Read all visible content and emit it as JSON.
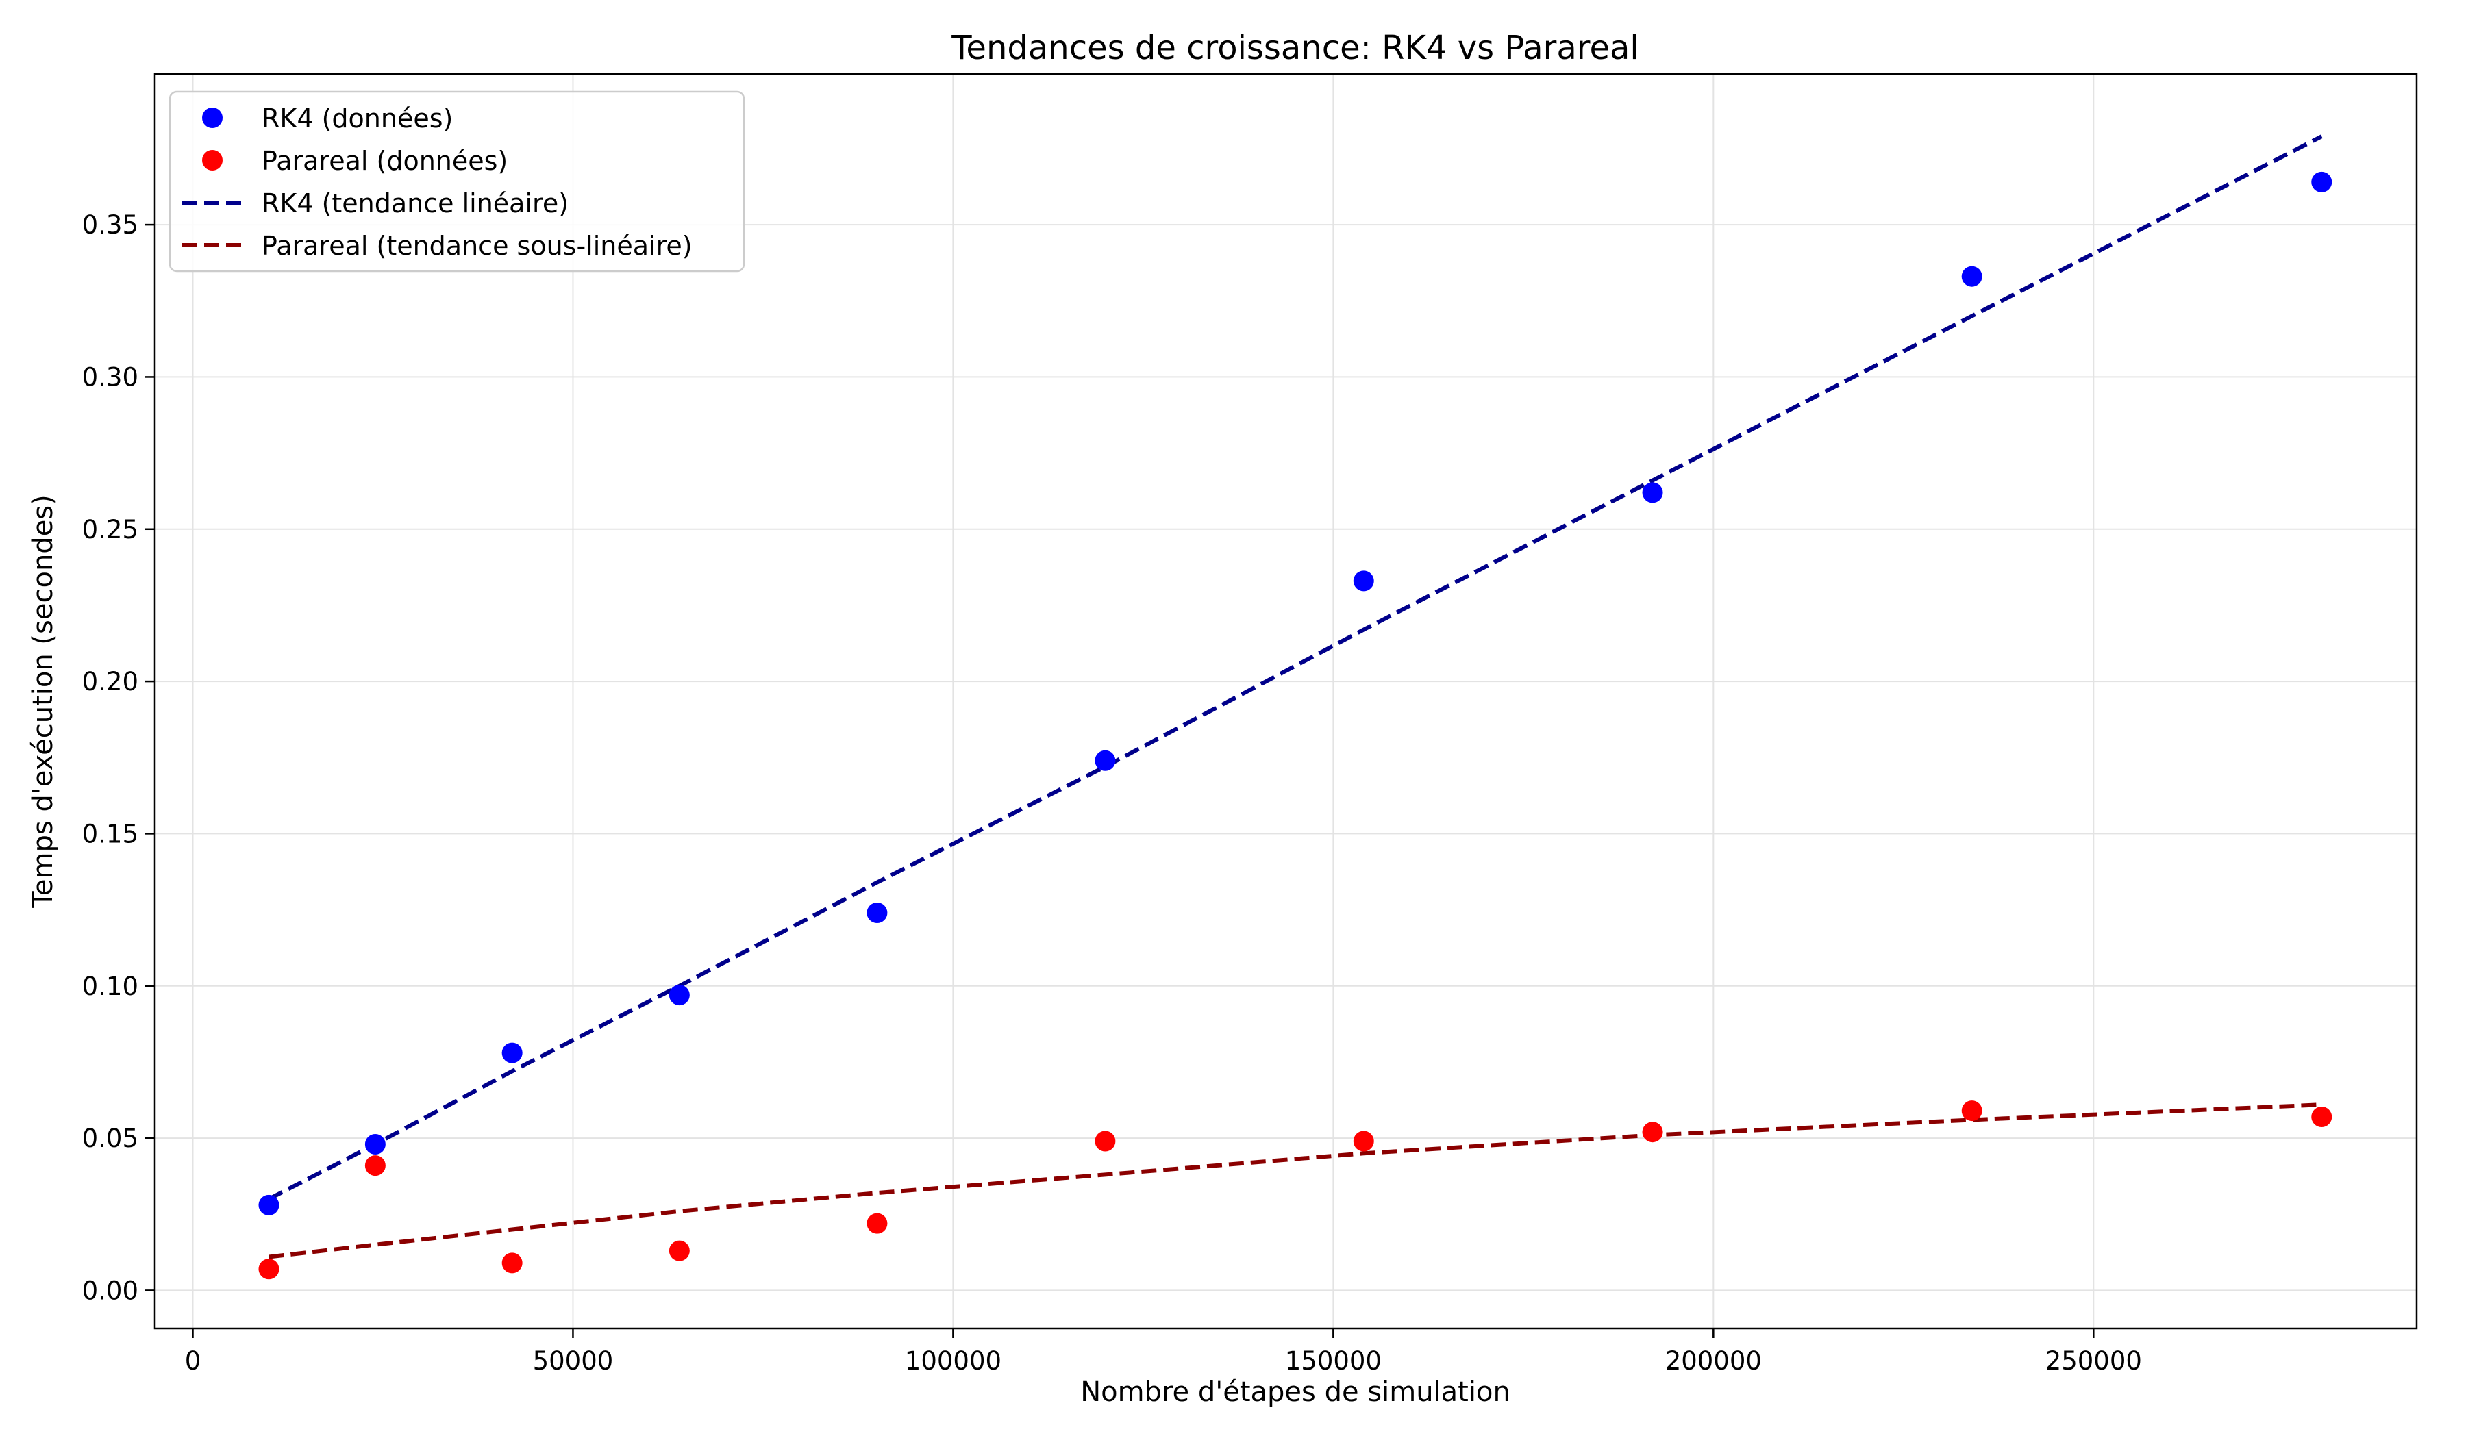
{
  "chart_data": {
    "type": "scatter",
    "title": "Tendances de croissance: RK4 vs Parareal",
    "xlabel": "Nombre d'étapes de simulation",
    "ylabel": "Temps d'exécution (secondes)",
    "xlim": [
      -5000,
      292500
    ],
    "ylim": [
      -0.0125,
      0.3995
    ],
    "xticks": [
      0,
      50000,
      100000,
      150000,
      200000,
      250000
    ],
    "xtick_labels": [
      "0",
      "50000",
      "100000",
      "150000",
      "200000",
      "250000"
    ],
    "yticks": [
      0.0,
      0.05,
      0.1,
      0.15,
      0.2,
      0.25,
      0.3,
      0.35
    ],
    "ytick_labels": [
      "0.00",
      "0.05",
      "0.10",
      "0.15",
      "0.20",
      "0.25",
      "0.30",
      "0.35"
    ],
    "grid": true,
    "legend_position": "top-left",
    "x": [
      10000,
      24000,
      42000,
      64000,
      90000,
      120000,
      154000,
      192000,
      234000,
      280000
    ],
    "series": [
      {
        "name": "RK4 (données)",
        "kind": "scatter",
        "color": "#0000ff",
        "values": [
          0.028,
          0.048,
          0.078,
          0.097,
          0.124,
          0.174,
          0.233,
          0.262,
          0.333,
          0.364
        ]
      },
      {
        "name": "Parareal (données)",
        "kind": "scatter",
        "color": "#ff0000",
        "values": [
          0.007,
          0.041,
          0.009,
          0.013,
          0.022,
          0.049,
          0.049,
          0.052,
          0.059,
          0.057
        ]
      },
      {
        "name": "RK4 (tendance linéaire)",
        "kind": "line",
        "style": "dashed",
        "color": "#00008b",
        "values": [
          0.03,
          0.048,
          0.072,
          0.1,
          0.134,
          0.172,
          0.217,
          0.266,
          0.32,
          0.379
        ]
      },
      {
        "name": "Parareal (tendance sous-linéaire)",
        "kind": "line",
        "style": "dashed",
        "color": "#8b0000",
        "values": [
          0.011,
          0.015,
          0.02,
          0.026,
          0.032,
          0.038,
          0.045,
          0.051,
          0.056,
          0.061
        ]
      }
    ]
  }
}
